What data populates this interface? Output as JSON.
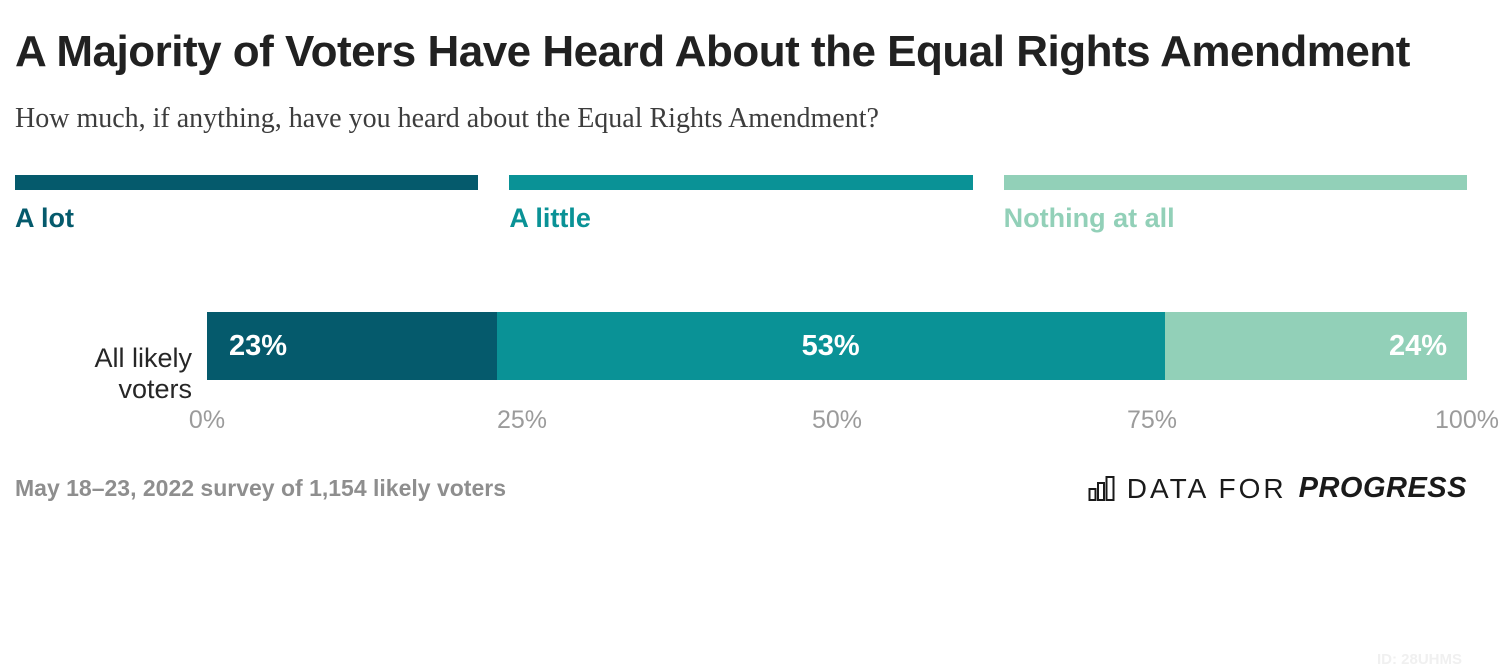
{
  "page": {
    "title": "A Majority of Voters Have Heard About the Equal Rights Amendment",
    "subtitle": "How much, if anything, have you heard about the Equal Rights Amendment?",
    "footnote": "May 18–23, 2022 survey of 1,154 likely voters",
    "watermark_id": "ID: 28UHMS"
  },
  "branding": {
    "logo_icon": "bar-chart-icon",
    "logo_text_light": "DATA FOR",
    "logo_text_bold": "PROGRESS"
  },
  "colors": {
    "title": "#212121",
    "subtitle": "#3d3d3d",
    "axis_labels": "#9b9b9b",
    "footnote": "#8e8e8e",
    "segment_value_text": "#ffffff",
    "row_label": "#262626",
    "watermark": "#f0f0f0"
  },
  "chart_data": {
    "type": "bar",
    "orientation": "horizontal-stacked",
    "title": "A Majority of Voters Have Heard About the Equal Rights Amendment",
    "subtitle": "How much, if anything, have you heard about the Equal Rights Amendment?",
    "categories": [
      "All likely voters"
    ],
    "series": [
      {
        "name": "A lot",
        "color": "#055A6C",
        "values": [
          23
        ]
      },
      {
        "name": "A little",
        "color": "#0A9296",
        "values": [
          53
        ]
      },
      {
        "name": "Nothing at all",
        "color": "#92D0B8",
        "values": [
          24
        ]
      }
    ],
    "value_suffix": "%",
    "x_ticks": [
      "0%",
      "25%",
      "50%",
      "75%",
      "100%"
    ],
    "xlim": [
      0,
      100
    ],
    "grid": false,
    "legend_position": "top"
  }
}
